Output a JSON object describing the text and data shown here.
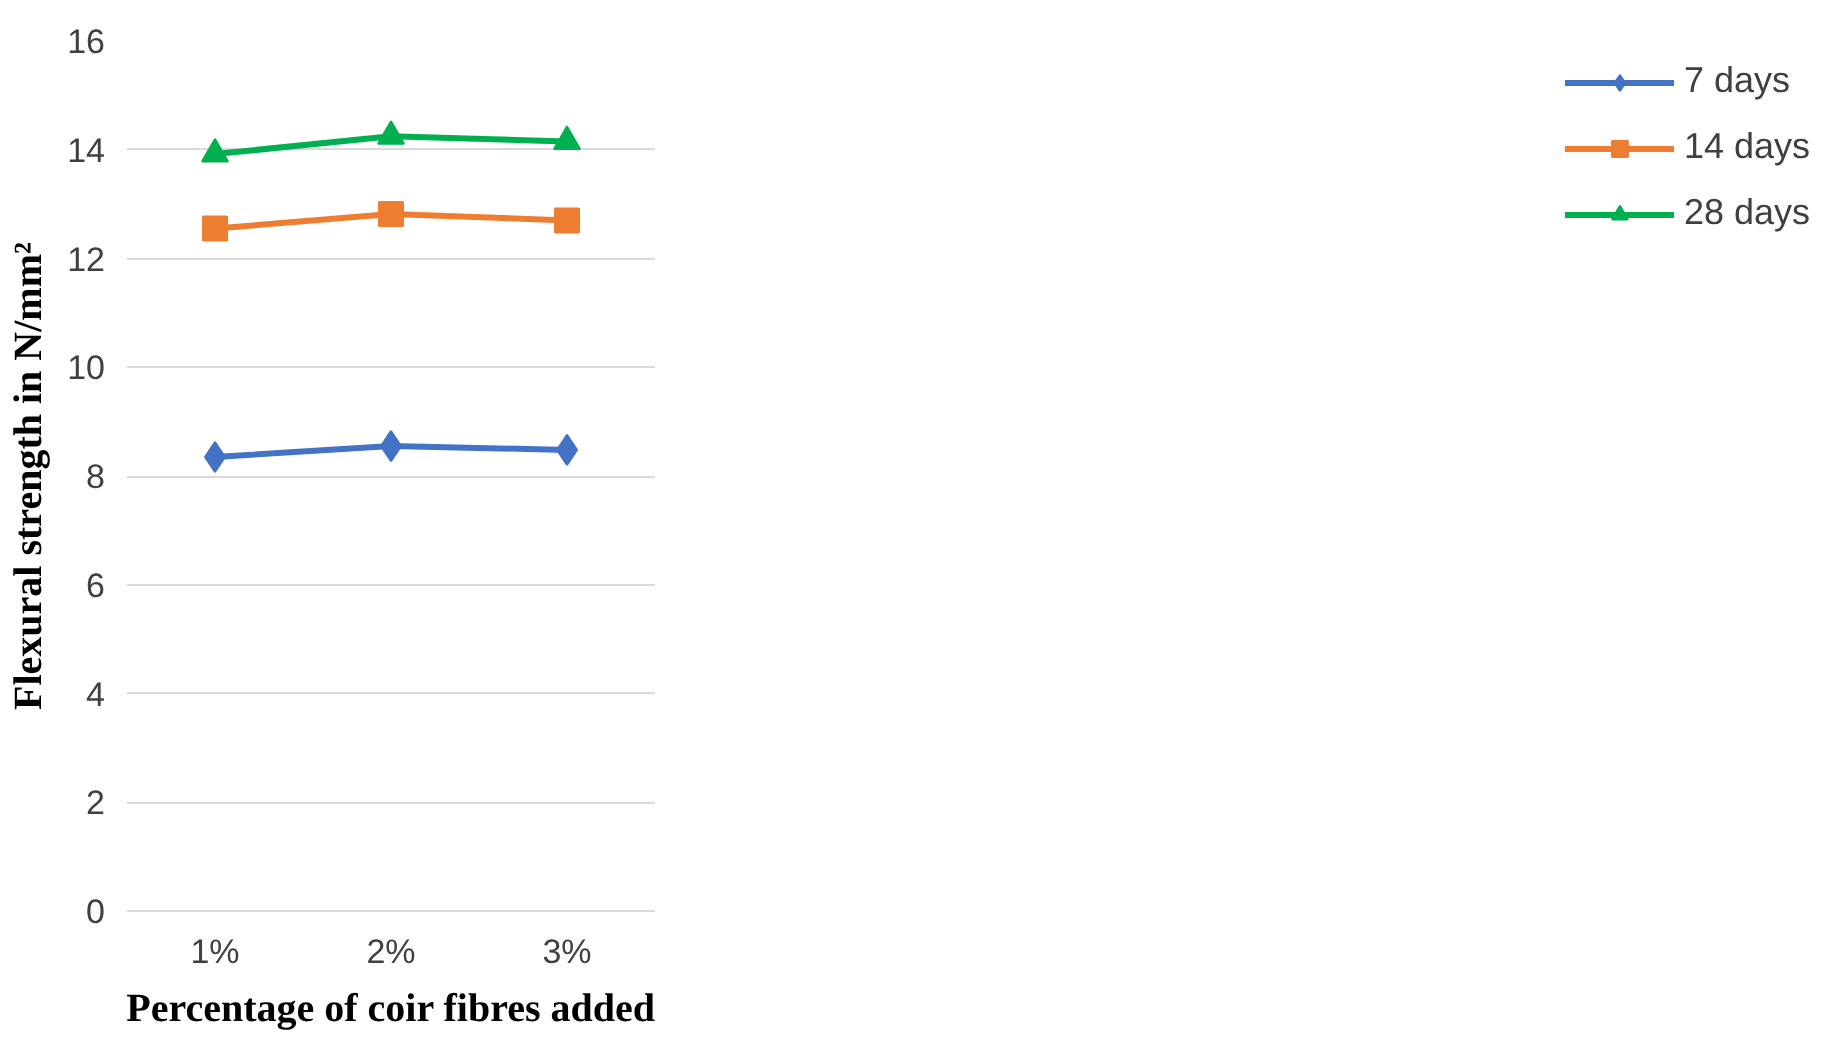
{
  "chart_data": {
    "type": "line",
    "xlabel": "Percentage of coir fibres added",
    "ylabel": "Flexural strength in N/mm²",
    "categories": [
      "1%",
      "2%",
      "3%"
    ],
    "series": [
      {
        "name": "7 days",
        "color": "#4472c4",
        "marker": "diamond",
        "values": [
          8.35,
          8.55,
          8.48
        ]
      },
      {
        "name": "14 days",
        "color": "#ed7d31",
        "marker": "square",
        "values": [
          12.55,
          12.82,
          12.7
        ]
      },
      {
        "name": "28 days",
        "color": "#00b050",
        "marker": "triangle",
        "values": [
          13.92,
          14.25,
          14.15
        ]
      }
    ],
    "ylim": [
      0,
      16
    ],
    "yticks": [
      0,
      2,
      4,
      6,
      8,
      10,
      12,
      14,
      16
    ],
    "grid": "y",
    "legend": "right",
    "line_style": "solid"
  }
}
